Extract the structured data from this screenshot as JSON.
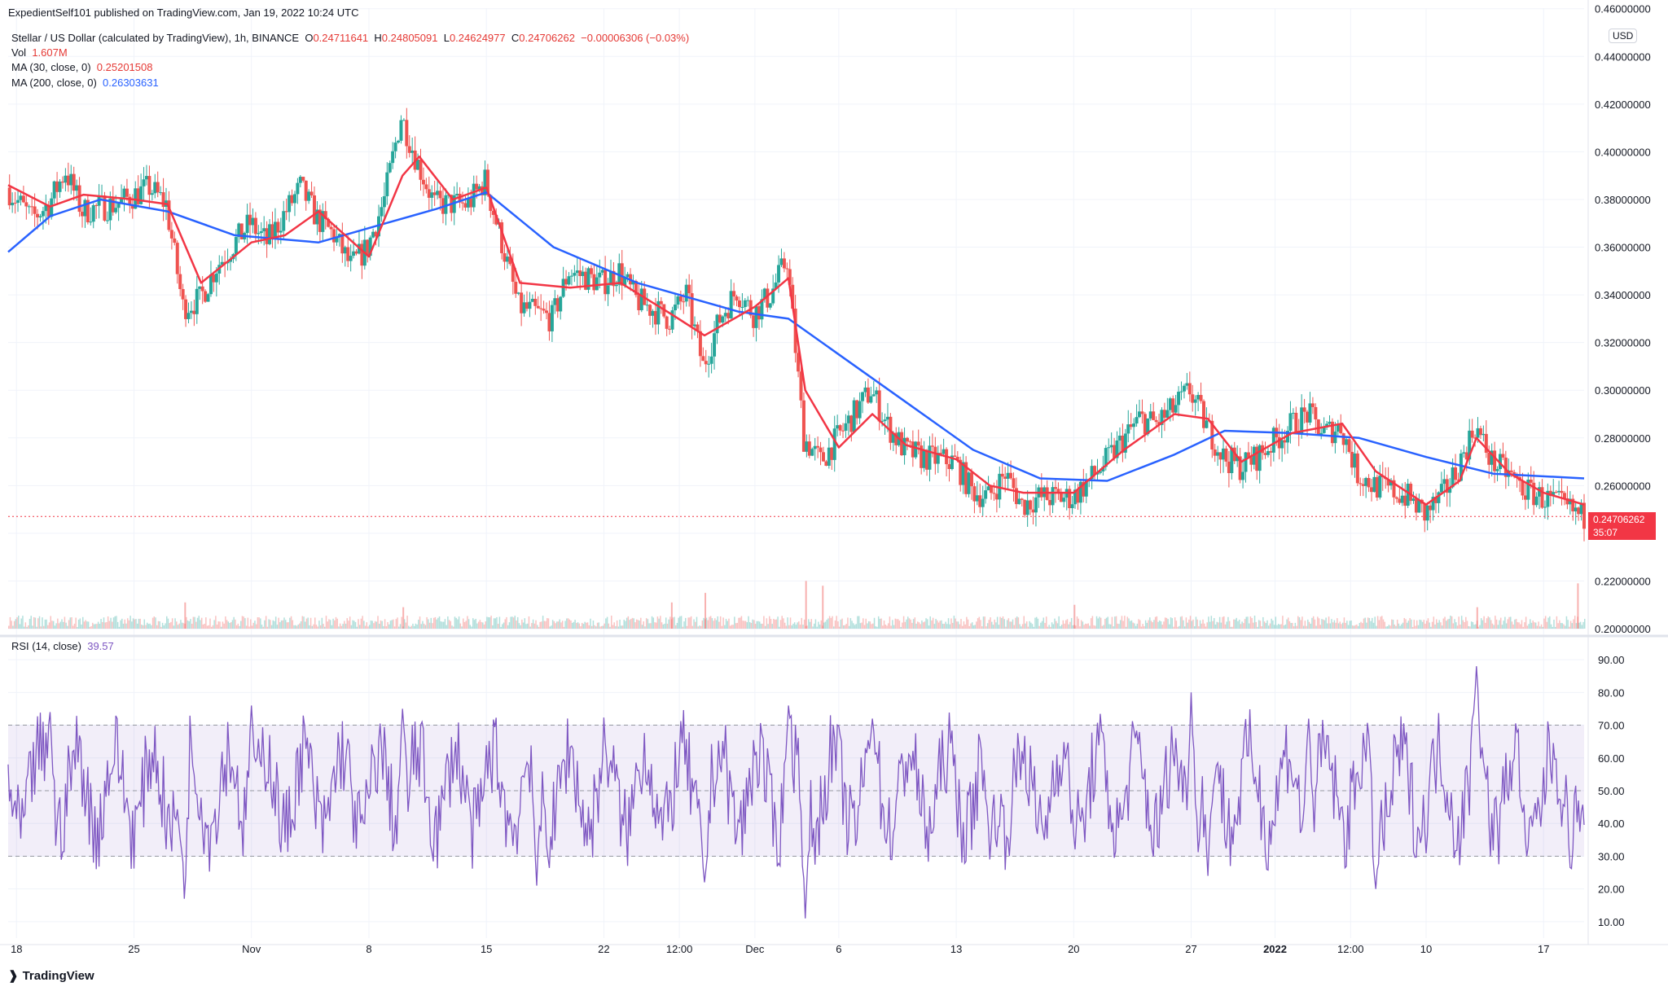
{
  "header": {
    "publisher": "ExpedientSelf101 published on TradingView.com, Jan 19, 2022 10:24 UTC",
    "symbol_line": "Stellar / US Dollar (calculated by TradingView), 1h, BINANCE",
    "ohlc": {
      "o_label": "O",
      "o": "0.24711641",
      "h_label": "H",
      "h": "0.24805091",
      "l_label": "L",
      "l": "0.24624977",
      "c_label": "C",
      "c": "0.24706262",
      "change": "−0.00006306 (−0.03%)"
    },
    "vol_label": "Vol",
    "vol": "1.607M",
    "ma30_label": "MA (30, close, 0)",
    "ma30": "0.25201508",
    "ma200_label": "MA (200, close, 0)",
    "ma200": "0.26303631",
    "rsi_label": "RSI (14, close)",
    "rsi": "39.57",
    "currency": "USD",
    "last_price": "0.24706262",
    "countdown": "35:07"
  },
  "colors": {
    "ma30": "#f23645",
    "ma200": "#2962ff",
    "rsi": "#7e57c2",
    "up": "#26a69a",
    "down": "#ef5350"
  },
  "brand": "TradingView",
  "chart_data": [
    {
      "type": "candlestick",
      "ylim": [
        0.2,
        0.45
      ],
      "y_ticks": [
        "0.20000000",
        "0.22000000",
        "0.24000000",
        "0.26000000",
        "0.28000000",
        "0.30000000",
        "0.32000000",
        "0.34000000",
        "0.36000000",
        "0.38000000",
        "0.40000000",
        "0.42000000",
        "0.44000000",
        "0.46000000"
      ],
      "x_ticks": [
        "18",
        "25",
        "Nov",
        "8",
        "15",
        "22",
        "12:00",
        "Dec",
        "6",
        "13",
        "20",
        "27",
        "2022",
        "12:00",
        "10",
        "17"
      ],
      "x_tick_dates": [
        "2021-10-18",
        "2021-10-25",
        "2021-11-01",
        "2021-11-08",
        "2021-11-15",
        "2021-11-22",
        "2021-11-26 12:00",
        "2021-12-01",
        "2021-12-06",
        "2021-12-13",
        "2021-12-20",
        "2021-12-27",
        "2022-01-01",
        "2022-01-05 12:00",
        "2022-01-10",
        "2022-01-17"
      ],
      "x_range": [
        "2021-10-17 12:00",
        "2022-01-19 10:00"
      ],
      "price_path": [
        [
          "2021-10-17 12:00",
          0.385
        ],
        [
          "2021-10-19",
          0.372
        ],
        [
          "2021-10-20",
          0.378
        ],
        [
          "2021-10-21",
          0.392
        ],
        [
          "2021-10-22",
          0.375
        ],
        [
          "2021-10-24",
          0.378
        ],
        [
          "2021-10-26",
          0.385
        ],
        [
          "2021-10-27",
          0.378
        ],
        [
          "2021-10-28",
          0.335
        ],
        [
          "2021-10-29",
          0.338
        ],
        [
          "2021-10-30",
          0.352
        ],
        [
          "2021-11-01",
          0.37
        ],
        [
          "2021-11-02",
          0.362
        ],
        [
          "2021-11-04",
          0.385
        ],
        [
          "2021-11-05",
          0.372
        ],
        [
          "2021-11-06",
          0.365
        ],
        [
          "2021-11-07",
          0.352
        ],
        [
          "2021-11-08",
          0.36
        ],
        [
          "2021-11-09",
          0.38
        ],
        [
          "2021-11-10",
          0.415
        ],
        [
          "2021-11-11",
          0.395
        ],
        [
          "2021-11-12",
          0.378
        ],
        [
          "2021-11-14",
          0.378
        ],
        [
          "2021-11-15",
          0.388
        ],
        [
          "2021-11-16",
          0.362
        ],
        [
          "2021-11-17",
          0.335
        ],
        [
          "2021-11-19",
          0.33
        ],
        [
          "2021-11-20",
          0.35
        ],
        [
          "2021-11-22",
          0.345
        ],
        [
          "2021-11-23",
          0.35
        ],
        [
          "2021-11-24",
          0.338
        ],
        [
          "2021-11-26",
          0.33
        ],
        [
          "2021-11-27",
          0.34
        ],
        [
          "2021-11-28",
          0.31
        ],
        [
          "2021-11-29",
          0.33
        ],
        [
          "2021-11-30",
          0.342
        ],
        [
          "2021-12-01",
          0.332
        ],
        [
          "2021-12-02",
          0.34
        ],
        [
          "2021-12-03",
          0.355
        ],
        [
          "2021-12-04",
          0.28
        ],
        [
          "2021-12-05",
          0.27
        ],
        [
          "2021-12-06",
          0.28
        ],
        [
          "2021-12-07",
          0.29
        ],
        [
          "2021-12-08",
          0.3
        ],
        [
          "2021-12-09",
          0.285
        ],
        [
          "2021-12-10",
          0.275
        ],
        [
          "2021-12-11",
          0.272
        ],
        [
          "2021-12-13",
          0.27
        ],
        [
          "2021-12-14",
          0.258
        ],
        [
          "2021-12-15",
          0.255
        ],
        [
          "2021-12-16",
          0.265
        ],
        [
          "2021-12-17",
          0.252
        ],
        [
          "2021-12-18",
          0.255
        ],
        [
          "2021-12-20",
          0.255
        ],
        [
          "2021-12-21",
          0.262
        ],
        [
          "2021-12-22",
          0.27
        ],
        [
          "2021-12-24",
          0.288
        ],
        [
          "2021-12-25",
          0.286
        ],
        [
          "2021-12-26",
          0.292
        ],
        [
          "2021-12-27",
          0.3
        ],
        [
          "2021-12-28",
          0.285
        ],
        [
          "2021-12-29",
          0.272
        ],
        [
          "2021-12-30",
          0.268
        ],
        [
          "2021-12-31",
          0.272
        ],
        [
          "2022-01-02",
          0.285
        ],
        [
          "2022-01-03",
          0.29
        ],
        [
          "2022-01-04",
          0.282
        ],
        [
          "2022-01-05",
          0.285
        ],
        [
          "2022-01-06",
          0.265
        ],
        [
          "2022-01-07",
          0.26
        ],
        [
          "2022-01-08",
          0.258
        ],
        [
          "2022-01-09",
          0.255
        ],
        [
          "2022-01-10",
          0.248
        ],
        [
          "2022-01-11",
          0.255
        ],
        [
          "2022-01-12",
          0.268
        ],
        [
          "2022-01-13",
          0.285
        ],
        [
          "2022-01-14",
          0.27
        ],
        [
          "2022-01-15",
          0.265
        ],
        [
          "2022-01-16",
          0.258
        ],
        [
          "2022-01-17",
          0.255
        ],
        [
          "2022-01-18",
          0.252
        ],
        [
          "2022-01-19 10:00",
          0.247
        ]
      ],
      "ma30_path": [
        [
          "2021-10-17 12:00",
          0.386
        ],
        [
          "2021-10-20",
          0.377
        ],
        [
          "2021-10-22",
          0.382
        ],
        [
          "2021-10-25",
          0.38
        ],
        [
          "2021-10-27",
          0.378
        ],
        [
          "2021-10-29",
          0.345
        ],
        [
          "2021-11-01",
          0.362
        ],
        [
          "2021-11-03",
          0.365
        ],
        [
          "2021-11-05",
          0.375
        ],
        [
          "2021-11-08",
          0.356
        ],
        [
          "2021-11-10",
          0.39
        ],
        [
          "2021-11-11",
          0.398
        ],
        [
          "2021-11-13",
          0.38
        ],
        [
          "2021-11-15",
          0.385
        ],
        [
          "2021-11-17",
          0.345
        ],
        [
          "2021-11-20",
          0.343
        ],
        [
          "2021-11-23",
          0.345
        ],
        [
          "2021-11-26",
          0.332
        ],
        [
          "2021-11-28",
          0.323
        ],
        [
          "2021-12-01",
          0.335
        ],
        [
          "2021-12-03",
          0.347
        ],
        [
          "2021-12-04",
          0.3
        ],
        [
          "2021-12-06",
          0.276
        ],
        [
          "2021-12-08",
          0.29
        ],
        [
          "2021-12-10",
          0.277
        ],
        [
          "2021-12-13",
          0.271
        ],
        [
          "2021-12-15",
          0.26
        ],
        [
          "2021-12-17",
          0.257
        ],
        [
          "2021-12-20",
          0.257
        ],
        [
          "2021-12-23",
          0.275
        ],
        [
          "2021-12-26",
          0.29
        ],
        [
          "2021-12-28",
          0.288
        ],
        [
          "2021-12-30",
          0.27
        ],
        [
          "2022-01-02",
          0.282
        ],
        [
          "2022-01-05",
          0.286
        ],
        [
          "2022-01-07",
          0.266
        ],
        [
          "2022-01-10",
          0.252
        ],
        [
          "2022-01-12",
          0.262
        ],
        [
          "2022-01-13",
          0.28
        ],
        [
          "2022-01-15",
          0.265
        ],
        [
          "2022-01-17",
          0.257
        ],
        [
          "2022-01-19 10:00",
          0.252
        ]
      ],
      "ma200_path": [
        [
          "2021-10-17 12:00",
          0.358
        ],
        [
          "2021-10-20",
          0.373
        ],
        [
          "2021-10-23",
          0.38
        ],
        [
          "2021-10-27",
          0.375
        ],
        [
          "2021-10-31",
          0.365
        ],
        [
          "2021-11-05",
          0.362
        ],
        [
          "2021-11-09",
          0.37
        ],
        [
          "2021-11-12",
          0.376
        ],
        [
          "2021-11-15",
          0.383
        ],
        [
          "2021-11-19",
          0.36
        ],
        [
          "2021-11-24",
          0.345
        ],
        [
          "2021-11-30",
          0.333
        ],
        [
          "2021-12-03",
          0.33
        ],
        [
          "2021-12-06",
          0.315
        ],
        [
          "2021-12-10",
          0.295
        ],
        [
          "2021-12-14",
          0.275
        ],
        [
          "2021-12-18",
          0.263
        ],
        [
          "2021-12-22",
          0.262
        ],
        [
          "2021-12-26",
          0.273
        ],
        [
          "2021-12-29",
          0.283
        ],
        [
          "2022-01-02",
          0.282
        ],
        [
          "2022-01-06",
          0.28
        ],
        [
          "2022-01-10",
          0.272
        ],
        [
          "2022-01-14",
          0.265
        ],
        [
          "2022-01-19 10:00",
          0.263
        ]
      ],
      "last_price_value": 0.24706262,
      "volume_spikes": [
        [
          "2021-10-28",
          0.011
        ],
        [
          "2021-11-10",
          0.009
        ],
        [
          "2021-11-26",
          0.011
        ],
        [
          "2021-11-28",
          0.015
        ],
        [
          "2021-12-04",
          0.02
        ],
        [
          "2021-12-05",
          0.018
        ],
        [
          "2021-12-20",
          0.01
        ],
        [
          "2022-01-13",
          0.009
        ],
        [
          "2022-01-19",
          0.019
        ]
      ]
    },
    {
      "type": "line",
      "name": "RSI (14, close)",
      "ylim": [
        5,
        95
      ],
      "y_ticks": [
        "10.00",
        "20.00",
        "30.00",
        "40.00",
        "50.00",
        "60.00",
        "70.00",
        "80.00",
        "90.00"
      ],
      "band": [
        30,
        70
      ],
      "midline": 50,
      "last": 39.57,
      "extremes": [
        [
          "2021-10-20",
          74
        ],
        [
          "2021-10-28",
          17
        ],
        [
          "2021-11-01",
          76
        ],
        [
          "2021-11-10",
          75
        ],
        [
          "2021-11-18",
          21
        ],
        [
          "2021-11-28",
          22
        ],
        [
          "2021-12-03",
          76
        ],
        [
          "2021-12-04",
          11
        ],
        [
          "2021-12-08",
          72
        ],
        [
          "2021-12-15",
          29
        ],
        [
          "2021-12-27",
          80
        ],
        [
          "2021-12-28",
          24
        ],
        [
          "2022-01-03",
          72
        ],
        [
          "2022-01-07",
          20
        ],
        [
          "2022-01-13",
          88
        ],
        [
          "2022-01-16",
          30
        ],
        [
          "2022-01-19 10:00",
          39.57
        ]
      ]
    }
  ]
}
